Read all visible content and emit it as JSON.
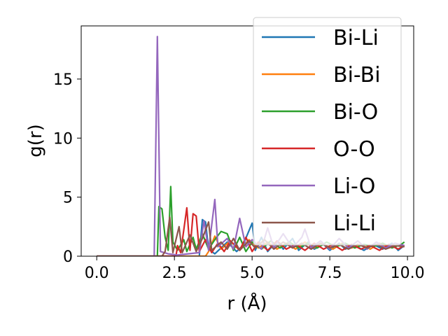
{
  "chart_data": {
    "type": "line",
    "title": "",
    "xlabel": "r (Å)",
    "ylabel": "g(r)",
    "xlim": [
      -0.5,
      10.2
    ],
    "ylim": [
      0,
      19.5
    ],
    "xticks": [
      0.0,
      2.5,
      5.0,
      7.5,
      10.0
    ],
    "xtick_labels": [
      "0.0",
      "2.5",
      "5.0",
      "7.5",
      "10.0"
    ],
    "yticks": [
      0,
      5,
      10,
      15
    ],
    "ytick_labels": [
      "0",
      "5",
      "10",
      "15"
    ],
    "grid": false,
    "legend": {
      "position": "upper-right"
    },
    "series": [
      {
        "name": "Bi-Li",
        "color": "#1f77b4",
        "points": [
          [
            0,
            0
          ],
          [
            3.3,
            0
          ],
          [
            3.4,
            3.1
          ],
          [
            3.5,
            2.9
          ],
          [
            3.6,
            0.6
          ],
          [
            3.8,
            0.2
          ],
          [
            4.2,
            1.2
          ],
          [
            4.5,
            0.4
          ],
          [
            4.7,
            0.9
          ],
          [
            5.0,
            2.8
          ],
          [
            5.1,
            0.5
          ],
          [
            5.3,
            1.6
          ],
          [
            5.5,
            0.4
          ],
          [
            5.8,
            1.3
          ],
          [
            6.0,
            0.6
          ],
          [
            6.3,
            1.5
          ],
          [
            6.5,
            0.5
          ],
          [
            6.8,
            1.2
          ],
          [
            7.0,
            0.6
          ],
          [
            7.3,
            1.0
          ],
          [
            7.5,
            0.5
          ],
          [
            7.8,
            1.1
          ],
          [
            8.0,
            0.6
          ],
          [
            8.3,
            0.9
          ],
          [
            8.6,
            0.5
          ],
          [
            8.9,
            1.0
          ],
          [
            9.2,
            0.6
          ],
          [
            9.5,
            1.1
          ],
          [
            9.7,
            0.5
          ],
          [
            9.9,
            0.9
          ]
        ]
      },
      {
        "name": "Bi-Bi",
        "color": "#ff7f0e",
        "points": [
          [
            0,
            0
          ],
          [
            3.5,
            0
          ],
          [
            3.6,
            0.4
          ],
          [
            3.8,
            1.7
          ],
          [
            4.0,
            0.6
          ],
          [
            4.3,
            1.3
          ],
          [
            4.6,
            0.5
          ],
          [
            4.9,
            1.4
          ],
          [
            5.2,
            0.7
          ],
          [
            5.5,
            1.2
          ],
          [
            5.8,
            0.6
          ],
          [
            6.1,
            1.1
          ],
          [
            6.4,
            0.6
          ],
          [
            6.7,
            1.2
          ],
          [
            7.0,
            0.7
          ],
          [
            7.3,
            1.0
          ],
          [
            7.6,
            0.6
          ],
          [
            7.9,
            1.1
          ],
          [
            8.2,
            0.7
          ],
          [
            8.5,
            1.0
          ],
          [
            8.8,
            0.6
          ],
          [
            9.1,
            1.1
          ],
          [
            9.4,
            0.7
          ],
          [
            9.7,
            1.0
          ],
          [
            9.9,
            0.8
          ]
        ]
      },
      {
        "name": "Bi-O",
        "color": "#2ca02c",
        "points": [
          [
            0,
            0
          ],
          [
            1.95,
            0
          ],
          [
            2.0,
            4.2
          ],
          [
            2.1,
            4.0
          ],
          [
            2.2,
            1.6
          ],
          [
            2.3,
            0.5
          ],
          [
            2.38,
            5.9
          ],
          [
            2.45,
            1.2
          ],
          [
            2.6,
            0.5
          ],
          [
            2.8,
            1.4
          ],
          [
            2.9,
            0.4
          ],
          [
            3.1,
            1.6
          ],
          [
            3.2,
            0.6
          ],
          [
            3.4,
            1.9
          ],
          [
            3.6,
            0.6
          ],
          [
            3.8,
            1.4
          ],
          [
            4.0,
            2.1
          ],
          [
            4.2,
            1.9
          ],
          [
            4.4,
            0.5
          ],
          [
            4.6,
            1.6
          ],
          [
            4.8,
            0.4
          ],
          [
            5.0,
            1.2
          ],
          [
            5.3,
            0.6
          ],
          [
            5.6,
            1.3
          ],
          [
            5.9,
            0.7
          ],
          [
            6.2,
            1.2
          ],
          [
            6.5,
            0.7
          ],
          [
            6.8,
            1.1
          ],
          [
            7.1,
            0.7
          ],
          [
            7.4,
            1.2
          ],
          [
            7.7,
            0.8
          ],
          [
            8.0,
            1.1
          ],
          [
            8.3,
            0.7
          ],
          [
            8.6,
            1.0
          ],
          [
            8.9,
            0.8
          ],
          [
            9.2,
            1.1
          ],
          [
            9.5,
            0.7
          ],
          [
            9.8,
            1.0
          ],
          [
            9.9,
            1.2
          ]
        ]
      },
      {
        "name": "O-O",
        "color": "#d62728",
        "points": [
          [
            0,
            0
          ],
          [
            2.55,
            0
          ],
          [
            2.6,
            0.9
          ],
          [
            2.7,
            0.3
          ],
          [
            2.9,
            4.1
          ],
          [
            3.0,
            0.5
          ],
          [
            3.1,
            3.6
          ],
          [
            3.2,
            3.4
          ],
          [
            3.3,
            0.4
          ],
          [
            3.5,
            1.4
          ],
          [
            3.7,
            0.3
          ],
          [
            3.9,
            1.1
          ],
          [
            4.1,
            0.4
          ],
          [
            4.3,
            1.3
          ],
          [
            4.6,
            0.5
          ],
          [
            4.8,
            1.6
          ],
          [
            5.0,
            0.4
          ],
          [
            5.2,
            1.2
          ],
          [
            5.5,
            0.5
          ],
          [
            5.8,
            1.3
          ],
          [
            6.1,
            0.6
          ],
          [
            6.4,
            1.0
          ],
          [
            6.7,
            0.5
          ],
          [
            7.0,
            1.1
          ],
          [
            7.3,
            0.6
          ],
          [
            7.6,
            1.0
          ],
          [
            7.9,
            0.5
          ],
          [
            8.2,
            1.0
          ],
          [
            8.5,
            0.6
          ],
          [
            8.8,
            0.9
          ],
          [
            9.1,
            0.5
          ],
          [
            9.4,
            1.0
          ],
          [
            9.7,
            0.6
          ],
          [
            9.9,
            0.9
          ]
        ]
      },
      {
        "name": "Li-O",
        "color": "#9467bd",
        "points": [
          [
            0,
            0
          ],
          [
            1.85,
            0
          ],
          [
            1.95,
            18.6
          ],
          [
            2.05,
            0.4
          ],
          [
            2.3,
            0.2
          ],
          [
            2.6,
            0.1
          ],
          [
            3.3,
            0.3
          ],
          [
            3.45,
            3.0
          ],
          [
            3.6,
            0.5
          ],
          [
            3.8,
            4.8
          ],
          [
            3.9,
            0.8
          ],
          [
            4.2,
            1.5
          ],
          [
            4.4,
            0.6
          ],
          [
            4.6,
            3.2
          ],
          [
            4.8,
            0.8
          ],
          [
            5.0,
            1.4
          ],
          [
            5.3,
            0.6
          ],
          [
            5.5,
            2.4
          ],
          [
            5.7,
            0.7
          ],
          [
            6.0,
            1.9
          ],
          [
            6.3,
            0.7
          ],
          [
            6.6,
            1.6
          ],
          [
            6.7,
            2.3
          ],
          [
            6.9,
            0.7
          ],
          [
            7.2,
            1.3
          ],
          [
            7.5,
            0.6
          ],
          [
            7.8,
            1.5
          ],
          [
            8.1,
            0.7
          ],
          [
            8.4,
            1.3
          ],
          [
            8.7,
            0.6
          ],
          [
            9.0,
            1.2
          ],
          [
            9.3,
            0.7
          ],
          [
            9.6,
            1.1
          ],
          [
            9.9,
            0.9
          ]
        ]
      },
      {
        "name": "Li-Li",
        "color": "#8c564b",
        "points": [
          [
            0,
            0
          ],
          [
            2.1,
            0
          ],
          [
            2.2,
            0.4
          ],
          [
            2.35,
            3.3
          ],
          [
            2.45,
            0.3
          ],
          [
            2.65,
            2.5
          ],
          [
            2.75,
            0.3
          ],
          [
            3.0,
            1.8
          ],
          [
            3.2,
            0.4
          ],
          [
            3.4,
            1.5
          ],
          [
            3.6,
            2.9
          ],
          [
            3.7,
            0.5
          ],
          [
            4.0,
            1.2
          ],
          [
            4.2,
            0.6
          ],
          [
            4.4,
            1.5
          ],
          [
            4.6,
            0.5
          ],
          [
            4.9,
            1.3
          ],
          [
            5.1,
            0.7
          ],
          [
            5.4,
            1.4
          ],
          [
            5.7,
            0.6
          ],
          [
            6.0,
            1.2
          ],
          [
            6.3,
            0.7
          ],
          [
            6.6,
            1.1
          ],
          [
            6.9,
            0.6
          ],
          [
            7.2,
            1.1
          ],
          [
            7.5,
            0.7
          ],
          [
            7.8,
            1.0
          ],
          [
            8.1,
            0.6
          ],
          [
            8.4,
            1.0
          ],
          [
            8.7,
            0.7
          ],
          [
            9.0,
            1.0
          ],
          [
            9.3,
            0.6
          ],
          [
            9.6,
            0.9
          ],
          [
            9.9,
            0.8
          ]
        ]
      }
    ]
  }
}
